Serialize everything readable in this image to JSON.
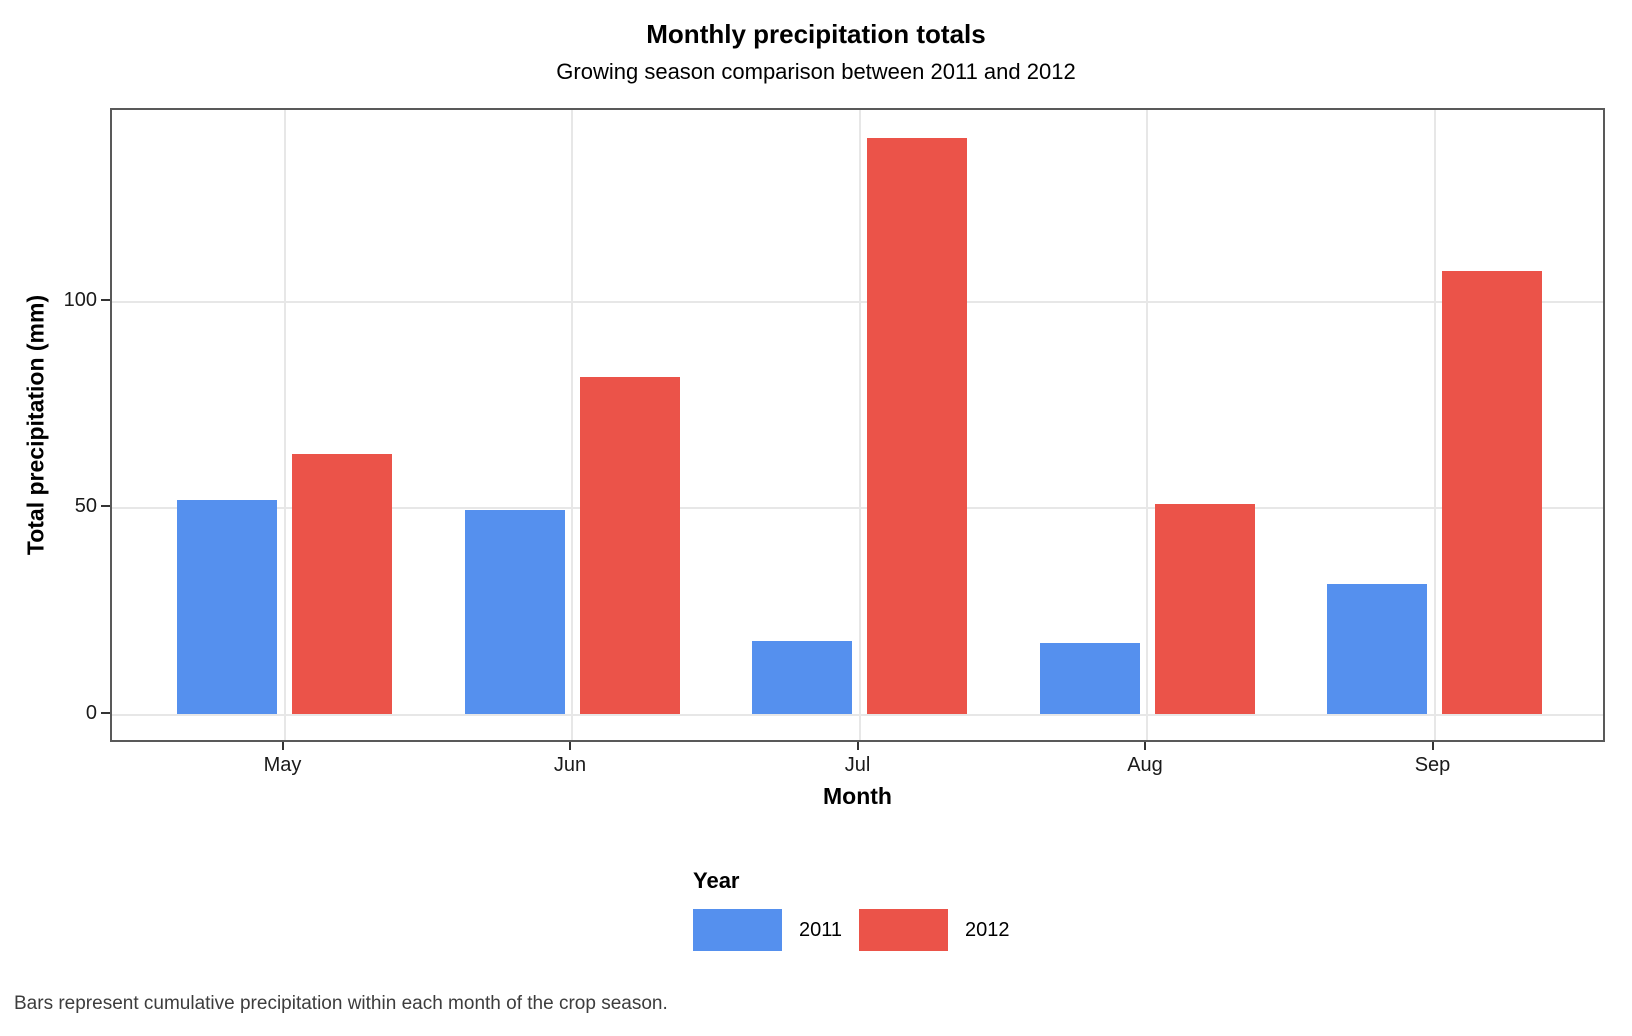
{
  "chart_data": {
    "type": "bar",
    "title": "Monthly precipitation totals",
    "subtitle": "Growing season comparison between 2011 and 2012",
    "xlabel": "Month",
    "ylabel": "Total precipitation (mm)",
    "caption": "Bars represent cumulative precipitation within each month of the crop season.",
    "categories": [
      "May",
      "Jun",
      "Jul",
      "Aug",
      "Sep"
    ],
    "series": [
      {
        "name": "2011",
        "color": "#5590EE",
        "values": [
          52,
          49.5,
          17.8,
          17.3,
          31.6
        ]
      },
      {
        "name": "2012",
        "color": "#EB5349",
        "values": [
          63.1,
          81.8,
          139.5,
          51,
          107.3
        ]
      }
    ],
    "legend_title": "Year",
    "legend_position": "bottom",
    "yticks": [
      0,
      50,
      100
    ],
    "ylim": [
      -7,
      146
    ],
    "grid": "major-only",
    "colors": {
      "panel_border": "#595959",
      "gridline": "#e7e7e7",
      "tick": "#333333",
      "axis_text": "#1a1a1a",
      "caption_text": "#3d3d3d"
    }
  }
}
